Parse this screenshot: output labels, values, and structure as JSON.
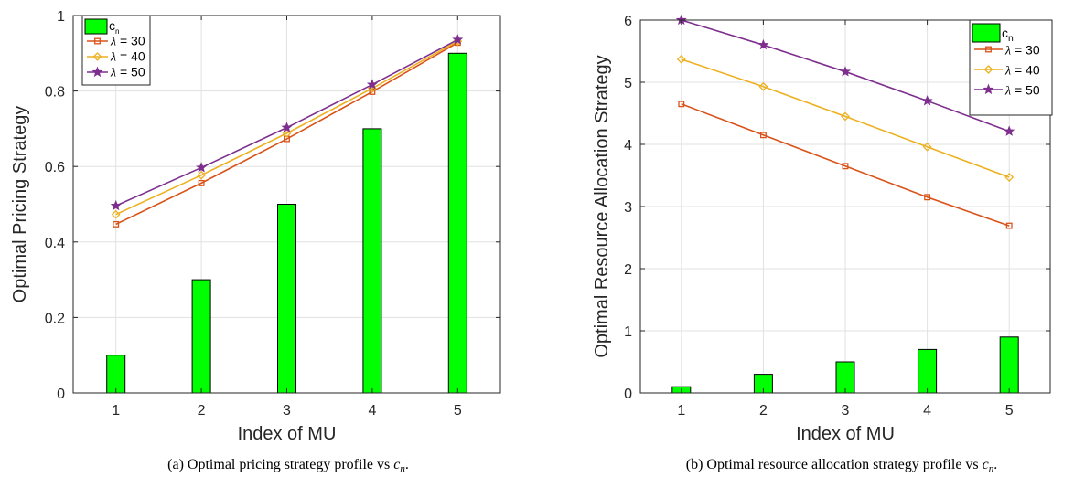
{
  "chart_data": [
    {
      "type": "bar",
      "panel_caption_prefix": "(a) Optimal pricing strategy profile vs ",
      "caption_var": "c",
      "caption_sub": "n",
      "caption_suffix": ".",
      "xlabel": "Index of MU",
      "ylabel": "Optimal Pricing Strategy",
      "categories": [
        1,
        2,
        3,
        4,
        5
      ],
      "xlim": [
        0.5,
        5.5
      ],
      "ylim": [
        0,
        1
      ],
      "xticks": [
        "1",
        "2",
        "3",
        "4",
        "5"
      ],
      "yticks": [
        "0",
        "0.2",
        "0.4",
        "0.6",
        "0.8",
        "1"
      ],
      "ytick_values": [
        0,
        0.2,
        0.4,
        0.6,
        0.8,
        1
      ],
      "grid": true,
      "legend_position": "top-left",
      "bars": {
        "name": "c",
        "name_sub": "n",
        "color": "#00ff00",
        "values": [
          0.1,
          0.3,
          0.5,
          0.7,
          0.9
        ]
      },
      "series": [
        {
          "name_symbol": "λ",
          "name_rest": " = 30",
          "color": "#d95319",
          "marker": "square",
          "values": [
            0.447,
            0.556,
            0.673,
            0.798,
            0.928
          ]
        },
        {
          "name_symbol": "λ",
          "name_rest": " = 40",
          "color": "#edb120",
          "marker": "diamond",
          "values": [
            0.473,
            0.577,
            0.688,
            0.807,
            0.932
          ]
        },
        {
          "name_symbol": "λ",
          "name_rest": " = 50",
          "color": "#7e2f8e",
          "marker": "star",
          "values": [
            0.496,
            0.597,
            0.703,
            0.817,
            0.936
          ]
        }
      ]
    },
    {
      "type": "bar",
      "panel_caption_prefix": "(b) Optimal resource allocation strategy profile vs ",
      "caption_var": "c",
      "caption_sub": "n",
      "caption_suffix": ".",
      "xlabel": "Index of MU",
      "ylabel": "Optimal Resource Allocation Strategy",
      "categories": [
        1,
        2,
        3,
        4,
        5
      ],
      "xlim": [
        0.5,
        5.5
      ],
      "ylim": [
        0,
        6
      ],
      "xticks": [
        "1",
        "2",
        "3",
        "4",
        "5"
      ],
      "yticks": [
        "0",
        "1",
        "2",
        "3",
        "4",
        "5",
        "6"
      ],
      "ytick_values": [
        0,
        1,
        2,
        3,
        4,
        5,
        6
      ],
      "grid": true,
      "legend_position": "top-right",
      "bars": {
        "name": "c",
        "name_sub": "n",
        "color": "#00ff00",
        "values": [
          0.1,
          0.3,
          0.5,
          0.7,
          0.9
        ]
      },
      "series": [
        {
          "name_symbol": "λ",
          "name_rest": " = 30",
          "color": "#d95319",
          "marker": "square",
          "values": [
            4.65,
            4.15,
            3.65,
            3.15,
            2.69
          ]
        },
        {
          "name_symbol": "λ",
          "name_rest": " = 40",
          "color": "#edb120",
          "marker": "diamond",
          "values": [
            5.37,
            4.93,
            4.45,
            3.96,
            3.47
          ]
        },
        {
          "name_symbol": "λ",
          "name_rest": " = 50",
          "color": "#7e2f8e",
          "marker": "star",
          "values": [
            6.0,
            5.6,
            5.17,
            4.7,
            4.21
          ]
        }
      ]
    }
  ]
}
